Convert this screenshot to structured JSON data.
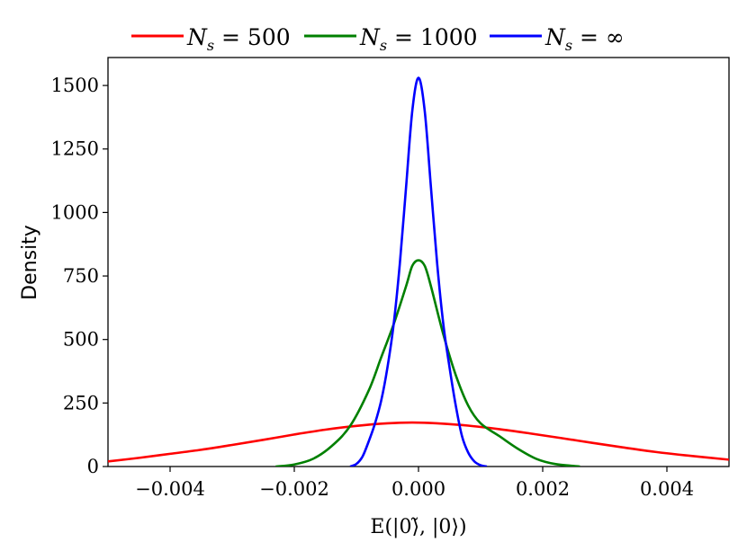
{
  "chart_data": {
    "type": "line",
    "xlabel": "E(|0⟩̃, |0⟩)",
    "ylabel": "Density",
    "xlim": [
      -0.005,
      0.005
    ],
    "ylim": [
      0,
      1610
    ],
    "grid": false,
    "legend_placement": "top-center, outside plot",
    "x_ticks": [
      -0.004,
      -0.002,
      0.0,
      0.002,
      0.004
    ],
    "x_tick_labels": [
      "−0.004",
      "−0.002",
      "0.000",
      "0.002",
      "0.004"
    ],
    "y_ticks": [
      0,
      250,
      500,
      750,
      1000,
      1250,
      1500
    ],
    "y_tick_labels": [
      "0",
      "250",
      "500",
      "750",
      "1000",
      "1250",
      "1500"
    ],
    "series": [
      {
        "name": "N_s = 500",
        "color": "#ff0000",
        "x": [
          -0.005,
          -0.0045,
          -0.004,
          -0.0035,
          -0.003,
          -0.0025,
          -0.002,
          -0.0015,
          -0.001,
          -0.0005,
          -0.0001,
          0.0003,
          0.0008,
          0.0013,
          0.0018,
          0.0023,
          0.0028,
          0.0033,
          0.0038,
          0.0043,
          0.005
        ],
        "y": [
          20,
          34,
          50,
          66,
          85,
          105,
          126,
          145,
          160,
          170,
          173,
          170,
          161,
          147,
          130,
          112,
          93,
          75,
          58,
          44,
          27
        ]
      },
      {
        "name": "N_s = 1000",
        "color": "#008000",
        "x": [
          -0.0023,
          -0.002,
          -0.0017,
          -0.0014,
          -0.0011,
          -0.0008,
          -0.0006,
          -0.0004,
          -0.0002,
          -0.0001,
          0.0,
          0.0001,
          0.0002,
          0.0004,
          0.0006,
          0.0008,
          0.001,
          0.0013,
          0.0016,
          0.0019,
          0.0022,
          0.0026
        ],
        "y": [
          0,
          8,
          30,
          80,
          160,
          300,
          430,
          560,
          710,
          790,
          812,
          790,
          710,
          520,
          360,
          240,
          170,
          120,
          70,
          30,
          10,
          0
        ]
      },
      {
        "name": "N_s = ∞",
        "color": "#0000ff",
        "x": [
          -0.0011,
          -0.001,
          -0.0009,
          -0.0008,
          -0.0007,
          -0.0006,
          -0.0005,
          -0.0004,
          -0.0003,
          -0.0002,
          -0.0001,
          0.0,
          0.0001,
          0.0002,
          0.0003,
          0.0004,
          0.0005,
          0.0006,
          0.0007,
          0.0008,
          0.0009,
          0.001,
          0.0011
        ],
        "y": [
          0,
          10,
          40,
          100,
          170,
          260,
          390,
          560,
          800,
          1100,
          1400,
          1530,
          1400,
          1100,
          800,
          560,
          390,
          240,
          120,
          55,
          20,
          5,
          0
        ]
      }
    ]
  },
  "legend": [
    {
      "sym": "N",
      "sub": "s",
      "rest": " = 500",
      "color": "#ff0000"
    },
    {
      "sym": "N",
      "sub": "s",
      "rest": " = 1000",
      "color": "#008000"
    },
    {
      "sym": "N",
      "sub": "s",
      "rest": " = ∞",
      "color": "#0000ff"
    }
  ]
}
